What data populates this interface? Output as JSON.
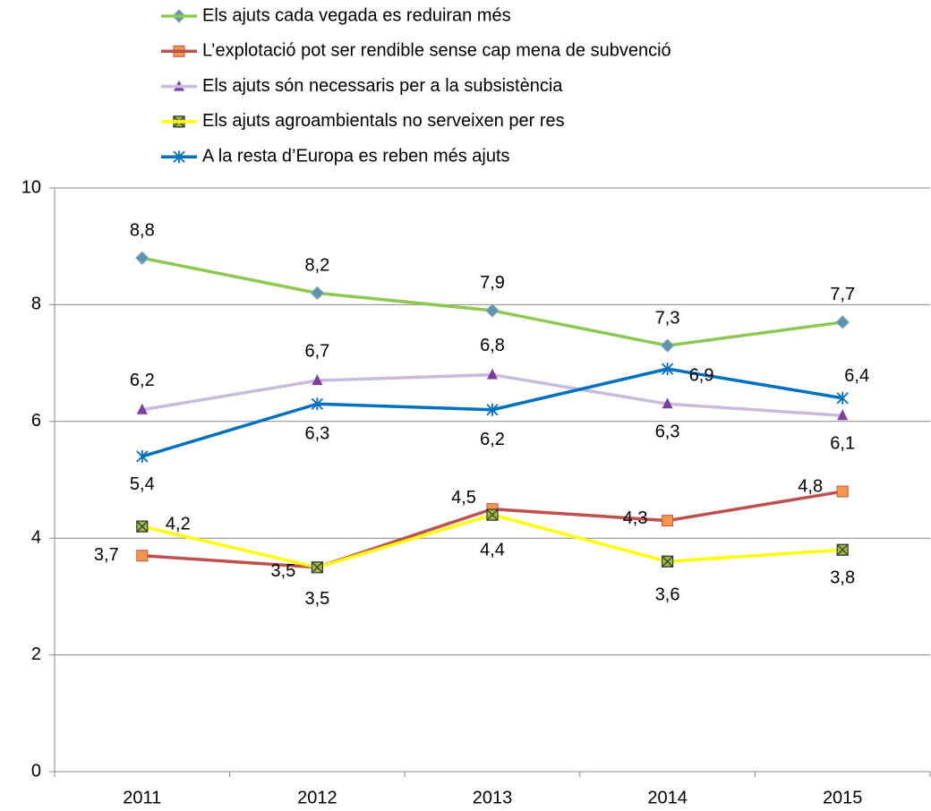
{
  "chart_data": {
    "type": "line",
    "categories": [
      "2011",
      "2012",
      "2013",
      "2014",
      "2015"
    ],
    "ylim": [
      0,
      10
    ],
    "yticks": [
      0,
      2,
      4,
      6,
      8,
      10
    ],
    "grid": true,
    "legend": "top",
    "series": [
      {
        "name": "Els ajuts cada vegada es reduiran més",
        "color": "#8dc850",
        "marker": "diamond",
        "marker_color": "#5e93b8",
        "values": [
          8.8,
          8.2,
          7.9,
          7.3,
          7.7
        ],
        "value_labels": [
          "8,8",
          "8,2",
          "7,9",
          "7,3",
          "7,7"
        ]
      },
      {
        "name": "L’explotació pot ser rendible sense cap mena de subvenció",
        "color": "#c0504d",
        "marker": "square",
        "marker_color": "#f79646",
        "values": [
          3.7,
          3.5,
          4.5,
          4.3,
          4.8
        ],
        "value_labels": [
          "3,7",
          "3,5",
          "4,5",
          "4,3",
          "4,8"
        ]
      },
      {
        "name": "Els ajuts són necessaris per a la subsistència",
        "color": "#c8bbdc",
        "marker": "triangle",
        "marker_color": "#7a3fa0",
        "values": [
          6.2,
          6.7,
          6.8,
          6.3,
          6.1
        ],
        "value_labels": [
          "6,2",
          "6,7",
          "6,8",
          "6,3",
          "6,1"
        ]
      },
      {
        "name": "Els ajuts agroambientals no serveixen per res",
        "color": "#ffff00",
        "marker": "xsquare",
        "marker_color": "#9bbb3a",
        "values": [
          4.2,
          3.5,
          4.4,
          3.6,
          3.8
        ],
        "value_labels": [
          "4,2",
          "3,5",
          "4,4",
          "3,6",
          "3,8"
        ]
      },
      {
        "name": "A la resta d’Europa es reben més ajuts",
        "color": "#0070c0",
        "marker": "star",
        "marker_color": "#0070c0",
        "values": [
          5.4,
          6.3,
          6.2,
          6.9,
          6.4
        ],
        "value_labels": [
          "5,4",
          "6,3",
          "6,2",
          "6,9",
          "6,4"
        ]
      }
    ]
  }
}
